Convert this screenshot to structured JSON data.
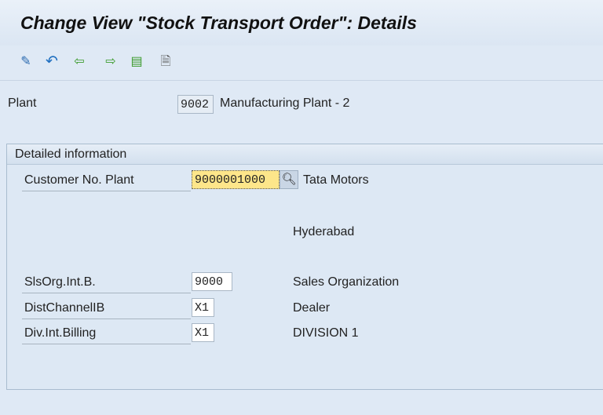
{
  "title": "Change View \"Stock Transport Order\": Details",
  "toolbar": [
    "display-change-icon",
    "undo-icon",
    "previous-entry-icon",
    "next-entry-icon",
    "select-icon",
    "display-icon"
  ],
  "plant": {
    "label": "Plant",
    "value": "9002",
    "description": "Manufacturing Plant - 2"
  },
  "group": {
    "title": "Detailed information",
    "customer": {
      "label": "Customer No. Plant",
      "value": "9000001000",
      "name": "Tata Motors",
      "city": "Hyderabad"
    },
    "salesorg": {
      "label": "SlsOrg.Int.B.",
      "value": "9000",
      "description": "Sales Organization"
    },
    "distchannel": {
      "label": "DistChannelIB",
      "value": "X1",
      "description": "Dealer"
    },
    "division": {
      "label": "Div.Int.Billing",
      "value": "X1",
      "description": "DIVISION 1"
    }
  }
}
